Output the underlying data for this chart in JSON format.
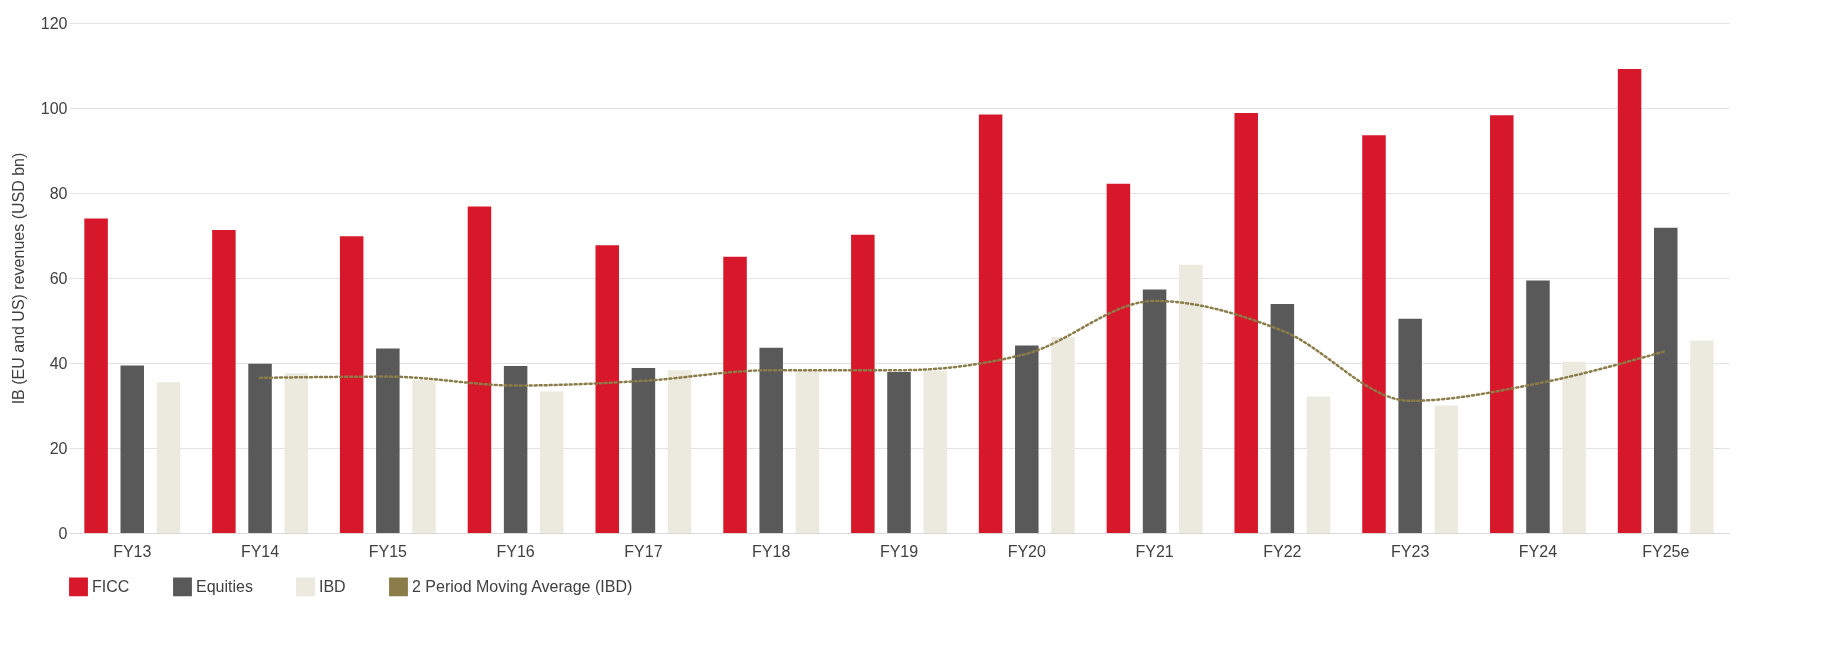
{
  "chart_data": {
    "type": "bar",
    "ylabel": "IB (EU and US) revenues (USD bn)",
    "categories": [
      "FY13",
      "FY14",
      "FY15",
      "FY16",
      "FY17",
      "FY18",
      "FY19",
      "FY20",
      "FY21",
      "FY22",
      "FY23",
      "FY24",
      "FY25e"
    ],
    "series": [
      {
        "name": "FICC",
        "color": "#d7182a",
        "values": [
          74,
          71.3,
          69.8,
          76.8,
          67.7,
          65,
          70.2,
          98.5,
          82.2,
          98.8,
          93.6,
          98.3,
          109.2
        ]
      },
      {
        "name": "Equities",
        "color": "#595959",
        "values": [
          39.4,
          39.8,
          43.4,
          39.3,
          38.8,
          43.6,
          37.9,
          44.1,
          57.3,
          53.9,
          50.4,
          59.4,
          71.8
        ]
      },
      {
        "name": "IBD",
        "color": "#ece9df",
        "values": [
          35.5,
          37.6,
          36,
          33.3,
          38.3,
          38.3,
          38.2,
          46.1,
          63.1,
          32.1,
          30,
          40.3,
          45.3
        ]
      },
      {
        "name": "2 Period Moving Average (IBD)",
        "color": "#8b7d4a",
        "type": "line",
        "line_style": "dotted",
        "values": [
          null,
          36.5,
          36.8,
          34.7,
          35.8,
          38.3,
          38.3,
          42.2,
          54.6,
          47.6,
          31.1,
          35.2,
          42.8
        ]
      }
    ],
    "ylim": [
      0,
      120
    ],
    "yticks": [
      0,
      20,
      40,
      60,
      80,
      100,
      120
    ],
    "grid": "y",
    "legend": "bottom",
    "marker": "none"
  }
}
